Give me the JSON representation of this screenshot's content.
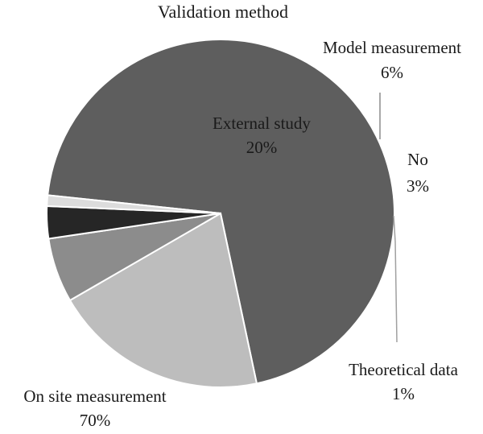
{
  "chart_data": {
    "type": "pie",
    "title": "Validation method",
    "slices": [
      {
        "label": "On site measurement",
        "value": 70,
        "pct_label": "70%",
        "color": "#5e5e5e"
      },
      {
        "label": "External study",
        "value": 20,
        "pct_label": "20%",
        "color": "#bdbdbd"
      },
      {
        "label": "Model measurement",
        "value": 6,
        "pct_label": "6%",
        "color": "#8c8c8c"
      },
      {
        "label": "No",
        "value": 3,
        "pct_label": "3%",
        "color": "#262626"
      },
      {
        "label": "Theoretical data",
        "value": 1,
        "pct_label": "1%",
        "color": "#dcdcdc"
      }
    ]
  }
}
